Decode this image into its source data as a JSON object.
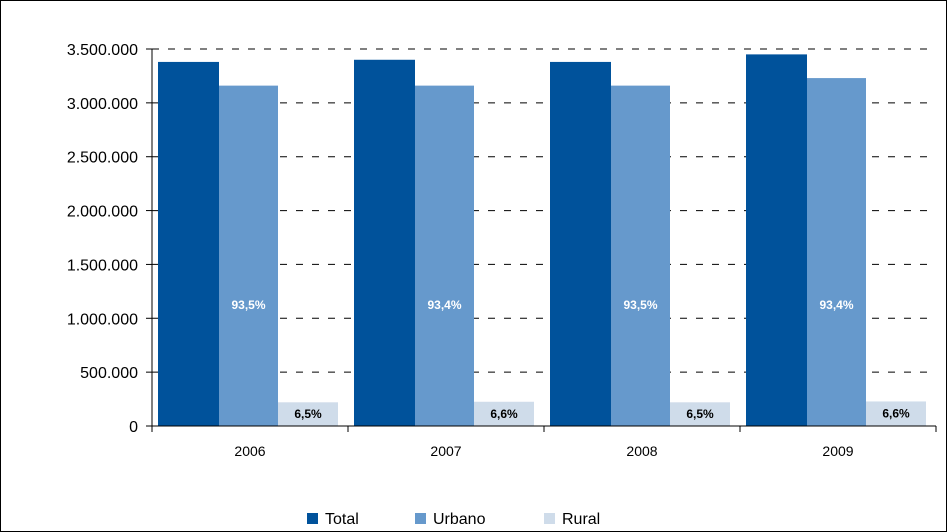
{
  "chart_data": {
    "type": "bar",
    "title": "",
    "xlabel": "",
    "ylabel": "",
    "categories": [
      "2006",
      "2007",
      "2008",
      "2009"
    ],
    "ylim": [
      0,
      3500000
    ],
    "y_ticks": [
      "0",
      "500.000",
      "1.000.000",
      "1.500.000",
      "2.000.000",
      "2.500.000",
      "3.000.000",
      "3.500.000"
    ],
    "grid": "dashed horizontal",
    "legend_position": "bottom",
    "series": [
      {
        "name": "Total",
        "color": "#00529B",
        "values": [
          3380000,
          3400000,
          3380000,
          3450000
        ],
        "labels": [
          "",
          "",
          "",
          ""
        ]
      },
      {
        "name": "Urbano",
        "color": "#6699CC",
        "values": [
          3160000,
          3160000,
          3160000,
          3230000
        ],
        "labels": [
          "93,5%",
          "93,4%",
          "93,5%",
          "93,4%"
        ]
      },
      {
        "name": "Rural",
        "color": "#CFDCEA",
        "values": [
          220000,
          225000,
          220000,
          228000
        ],
        "labels": [
          "6,5%",
          "6,6%",
          "6,5%",
          "6,6%"
        ]
      }
    ]
  }
}
